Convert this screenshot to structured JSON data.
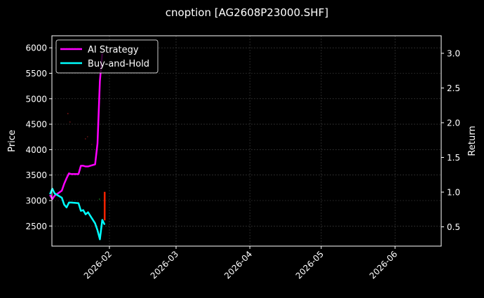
{
  "title": "cnoption [AG2608P23000.SHF]",
  "chart_data": {
    "type": "line",
    "title": "cnoption [AG2608P23000.SHF]",
    "xlabel": "",
    "ylabel": "Price",
    "ylabel_right": "Return",
    "x_ticks": [
      "2026-02",
      "2026-03",
      "2026-04",
      "2026-05",
      "2026-06"
    ],
    "y_ticks_left": [
      2500,
      3000,
      3500,
      4000,
      4500,
      5000,
      5500,
      6000
    ],
    "y_ticks_right": [
      0.5,
      1.0,
      1.5,
      2.0,
      2.5,
      3.0
    ],
    "ylim_left": [
      2150,
      6250
    ],
    "ylim_right": [
      0.23,
      3.25
    ],
    "xlim": [
      "2026-01-07",
      "2026-06-05"
    ],
    "grid": true,
    "legend_position": "upper left",
    "legend": [
      "AI Strategy",
      "Buy-and-Hold"
    ],
    "series": [
      {
        "name": "AI Strategy",
        "axis": "right",
        "color": "#ff00ff",
        "x": [
          "2026-01-07",
          "2026-01-08",
          "2026-01-09",
          "2026-01-12",
          "2026-01-13",
          "2026-01-14",
          "2026-01-15",
          "2026-01-16",
          "2026-01-19",
          "2026-01-20",
          "2026-01-21",
          "2026-01-22",
          "2026-01-23",
          "2026-01-26",
          "2026-01-27",
          "2026-01-28",
          "2026-01-29"
        ],
        "values": [
          0.96,
          0.9,
          0.95,
          1.02,
          1.12,
          1.2,
          1.27,
          1.26,
          1.26,
          1.38,
          1.38,
          1.37,
          1.37,
          1.4,
          1.7,
          2.6,
          3.0
        ]
      },
      {
        "name": "Buy-and-Hold",
        "axis": "right",
        "color": "#00ffff",
        "x": [
          "2026-01-07",
          "2026-01-08",
          "2026-01-09",
          "2026-01-12",
          "2026-01-13",
          "2026-01-14",
          "2026-01-15",
          "2026-01-16",
          "2026-01-19",
          "2026-01-20",
          "2026-01-21",
          "2026-01-22",
          "2026-01-23",
          "2026-01-26",
          "2026-01-27",
          "2026-01-28",
          "2026-01-29",
          "2026-01-30"
        ],
        "values": [
          0.97,
          1.05,
          0.98,
          0.92,
          0.82,
          0.78,
          0.85,
          0.85,
          0.84,
          0.73,
          0.74,
          0.68,
          0.71,
          0.55,
          0.45,
          0.32,
          0.6,
          0.53
        ]
      }
    ],
    "candles": [
      {
        "x": "2026-01-30",
        "open": 3170,
        "close": 2610,
        "color": "#ff2200"
      }
    ]
  },
  "colors": {
    "background": "#000000",
    "ai_strategy": "#ff00ff",
    "buy_and_hold": "#00ffff",
    "candle_down": "#ff2200",
    "grid": "#444444",
    "axes": "#ffffff"
  }
}
